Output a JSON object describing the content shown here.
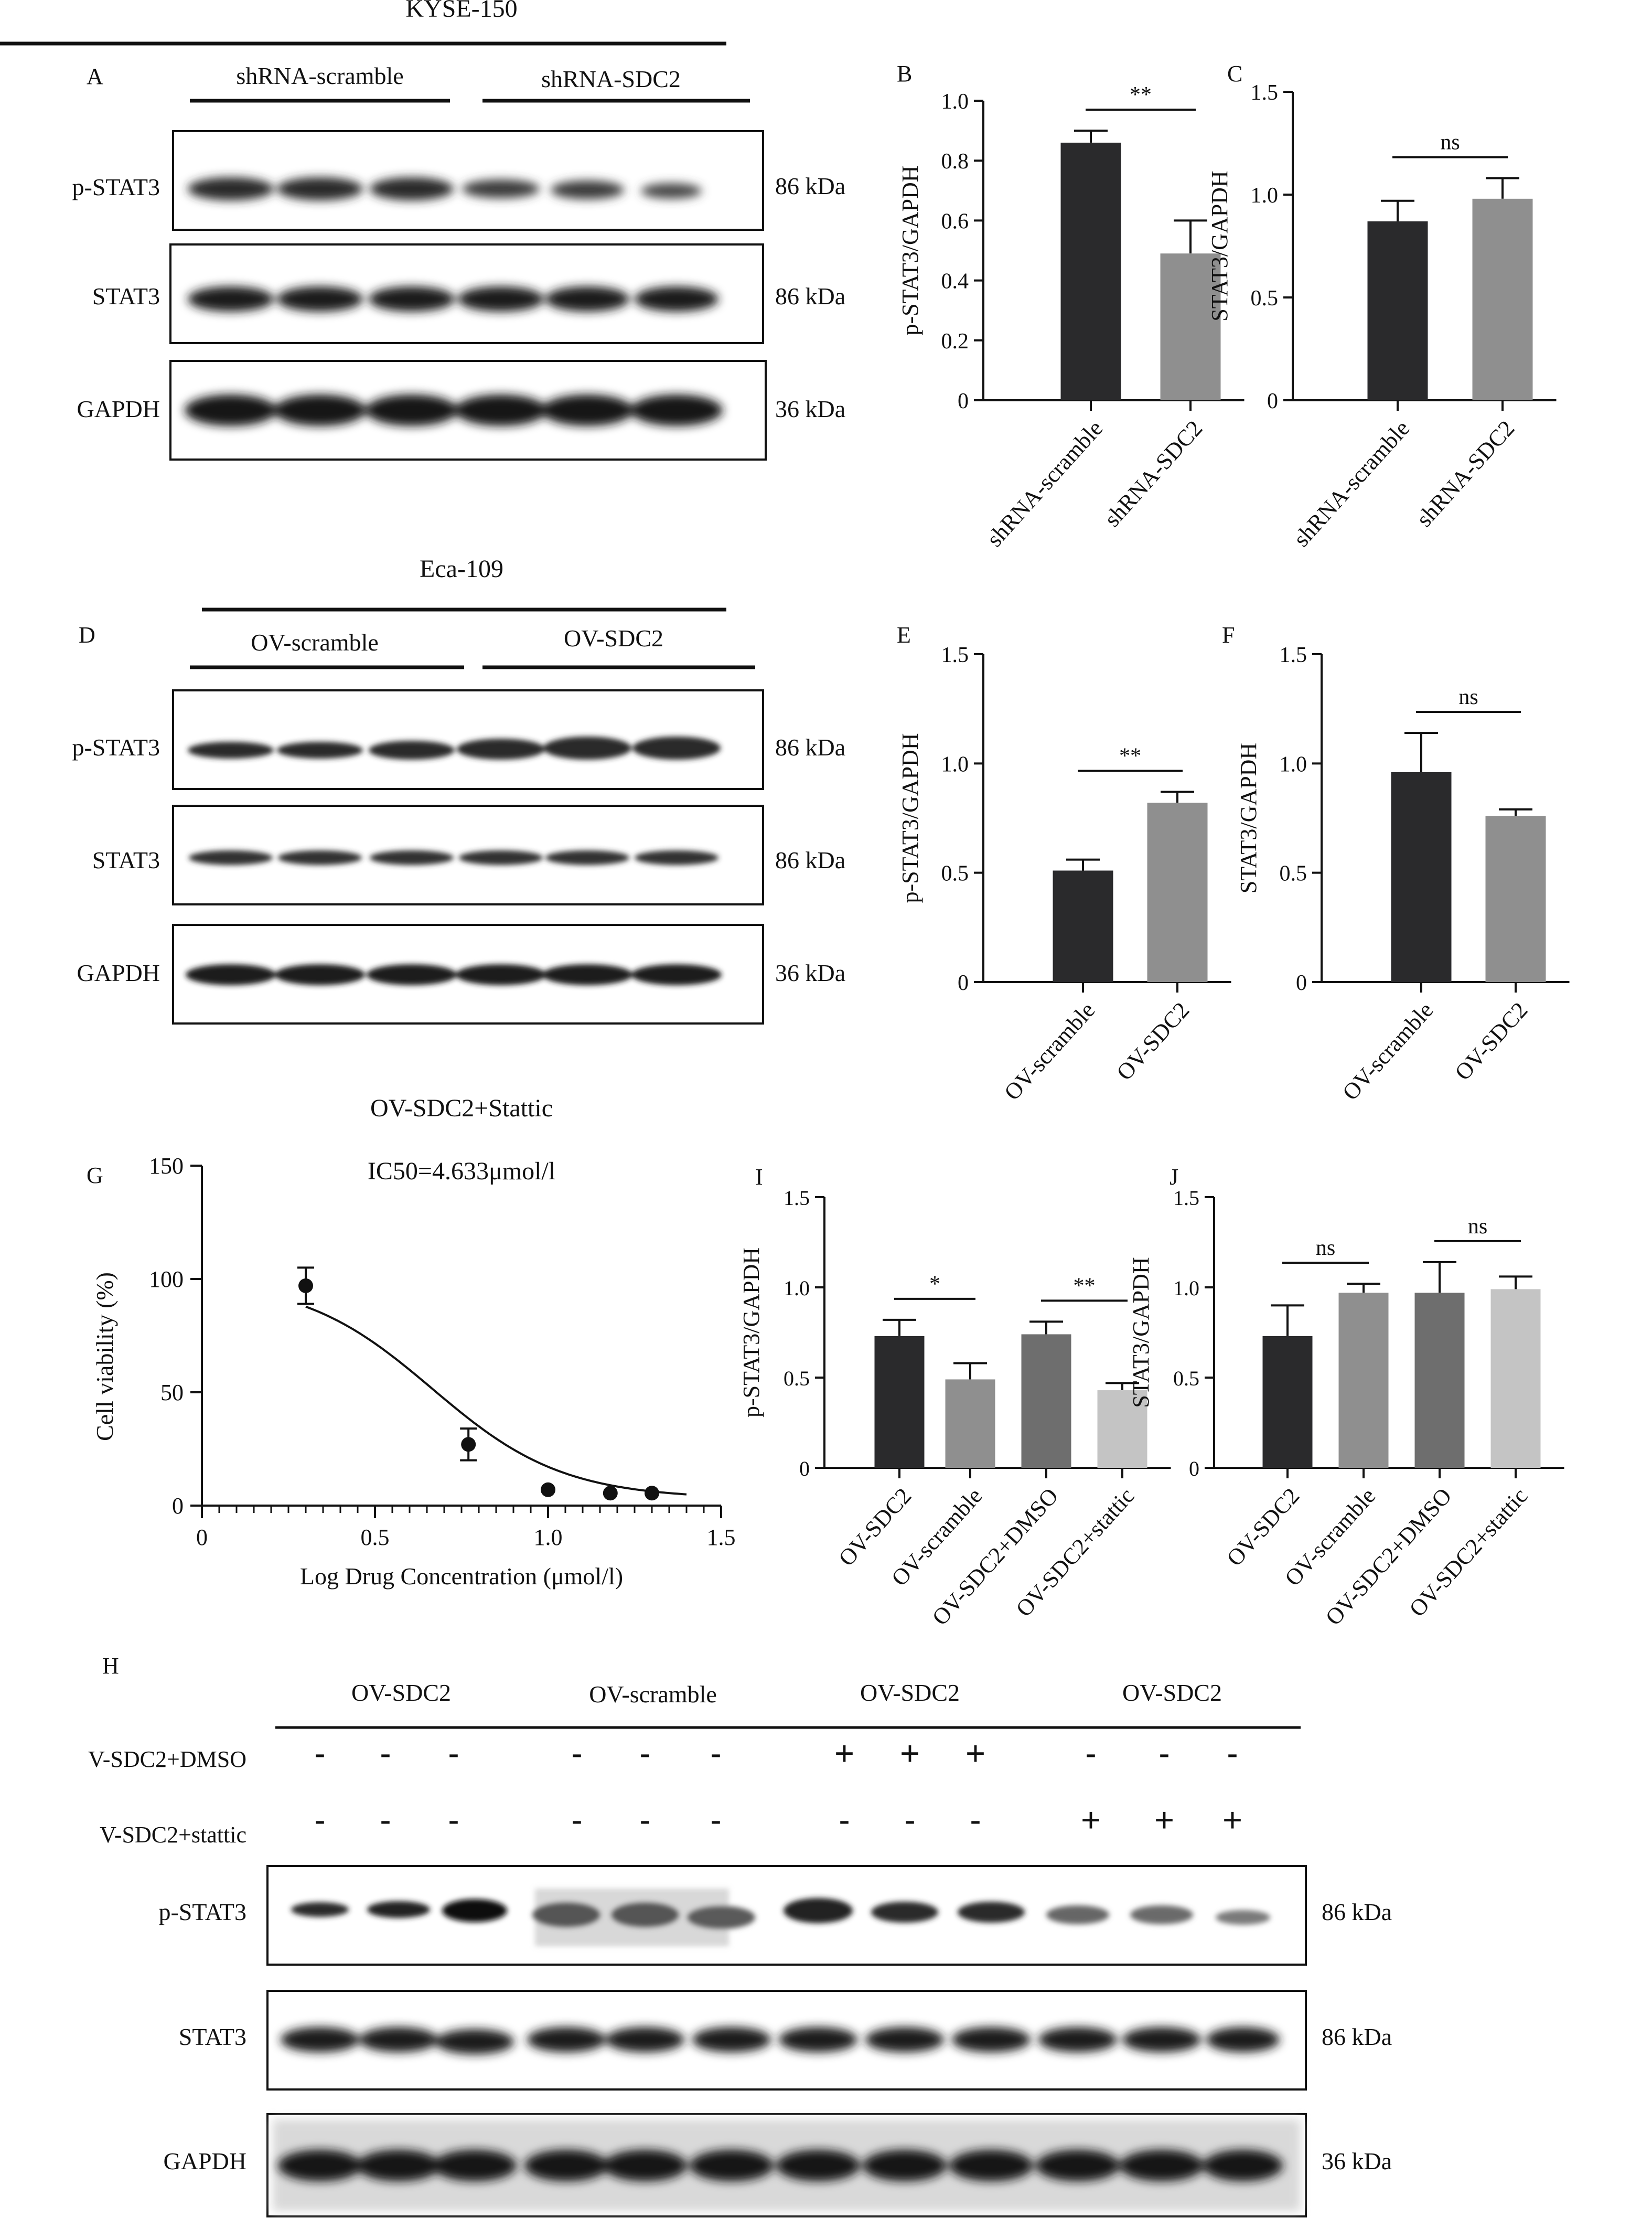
{
  "colors": {
    "black": "#2a2a2c",
    "gray": "#8f8f8f",
    "darkgray": "#6e6e6e",
    "lightgray": "#c4c4c4"
  },
  "panels": {
    "A": {
      "letter": "A",
      "cell_line": "KYSE-150",
      "groups": [
        "shRNA-scramble",
        "shRNA-SDC2"
      ],
      "blots": [
        {
          "label": "p-STAT3",
          "kda": "86 kDa"
        },
        {
          "label": "STAT3",
          "kda": "86 kDa"
        },
        {
          "label": "GAPDH",
          "kda": "36 kDa"
        }
      ]
    },
    "D": {
      "letter": "D",
      "cell_line": "Eca-109",
      "groups": [
        "OV-scramble",
        "OV-SDC2"
      ],
      "blots": [
        {
          "label": "p-STAT3",
          "kda": "86 kDa"
        },
        {
          "label": "STAT3",
          "kda": "86 kDa"
        },
        {
          "label": "GAPDH",
          "kda": "36 kDa"
        }
      ]
    },
    "H": {
      "letter": "H",
      "groups": [
        "OV-SDC2",
        "OV-scramble",
        "OV-SDC2",
        "OV-SDC2"
      ],
      "treat_rows": [
        {
          "label": "V-SDC2+DMSO",
          "signs": [
            "-",
            "-",
            "-",
            "-",
            "-",
            "-",
            "+",
            "+",
            "+",
            "-",
            "-",
            "-"
          ]
        },
        {
          "label": "V-SDC2+stattic",
          "signs": [
            "-",
            "-",
            "-",
            "-",
            "-",
            "-",
            "-",
            "-",
            "-",
            "+",
            "+",
            "+"
          ]
        }
      ],
      "blots": [
        {
          "label": "p-STAT3",
          "kda": "86 kDa"
        },
        {
          "label": "STAT3",
          "kda": "86 kDa"
        },
        {
          "label": "GAPDH",
          "kda": "36 kDa"
        }
      ]
    }
  },
  "chart_data": [
    {
      "panel": "B",
      "letter": "B",
      "type": "bar",
      "ylabel": "p-STAT3/GAPDH",
      "ylim": [
        0,
        1.0
      ],
      "yticks": [
        "0",
        "0.2",
        "0.4",
        "0.6",
        "0.8",
        "1.0"
      ],
      "categories": [
        "shRNA-scramble",
        "shRNA-SDC2"
      ],
      "values": [
        0.86,
        0.49
      ],
      "errors": [
        0.04,
        0.11
      ],
      "significance": [
        {
          "from": 0,
          "to": 1,
          "label": "**"
        }
      ]
    },
    {
      "panel": "C",
      "letter": "C",
      "type": "bar",
      "ylabel": "STAT3/GAPDH",
      "ylim": [
        0,
        1.5
      ],
      "yticks": [
        "0",
        "0.5",
        "1.0",
        "1.5"
      ],
      "categories": [
        "shRNA-scramble",
        "shRNA-SDC2"
      ],
      "values": [
        0.87,
        0.98
      ],
      "errors": [
        0.1,
        0.1
      ],
      "significance": [
        {
          "from": 0,
          "to": 1,
          "label": "ns"
        }
      ]
    },
    {
      "panel": "E",
      "letter": "E",
      "type": "bar",
      "ylabel": "p-STAT3/GAPDH",
      "ylim": [
        0,
        1.5
      ],
      "yticks": [
        "0",
        "0.5",
        "1.0",
        "1.5"
      ],
      "categories": [
        "OV-scramble",
        "OV-SDC2"
      ],
      "values": [
        0.51,
        0.82
      ],
      "errors": [
        0.05,
        0.05
      ],
      "significance": [
        {
          "from": 0,
          "to": 1,
          "label": "**"
        }
      ]
    },
    {
      "panel": "F",
      "letter": "F",
      "type": "bar",
      "ylabel": "STAT3/GAPDH",
      "ylim": [
        0,
        1.5
      ],
      "yticks": [
        "0",
        "0.5",
        "1.0",
        "1.5"
      ],
      "categories": [
        "OV-scramble",
        "OV-SDC2"
      ],
      "values": [
        0.96,
        0.76
      ],
      "errors": [
        0.18,
        0.03
      ],
      "significance": [
        {
          "from": 0,
          "to": 1,
          "label": "ns"
        }
      ]
    },
    {
      "panel": "G",
      "letter": "G",
      "type": "scatter",
      "title": "OV-SDC2+Stattic",
      "annotation": "IC50=4.633μmol/l",
      "xlabel": "Log Drug Concentration (μmol/l)",
      "ylabel": "Cell viability (%)",
      "xlim": [
        0,
        1.5
      ],
      "ylim": [
        0,
        150
      ],
      "xticks": [
        "0",
        "0.5",
        "1.0",
        "1.5"
      ],
      "yticks": [
        "0",
        "50",
        "100",
        "150"
      ],
      "points": [
        {
          "x": 0.3,
          "y": 97,
          "err": 8
        },
        {
          "x": 0.77,
          "y": 27,
          "err": 7
        },
        {
          "x": 1.0,
          "y": 7
        },
        {
          "x": 1.18,
          "y": 5.5
        },
        {
          "x": 1.3,
          "y": 5.5
        }
      ],
      "fit": {
        "top": 100,
        "bottom": 3,
        "logIC50": 0.666,
        "hill": -2.3
      }
    },
    {
      "panel": "I",
      "letter": "I",
      "type": "bar",
      "ylabel": "p-STAT3/GAPDH",
      "ylim": [
        0,
        1.5
      ],
      "yticks": [
        "0",
        "0.5",
        "1.0",
        "1.5"
      ],
      "categories": [
        "OV-SDC2",
        "OV-scramble",
        "OV-SDC2+DMSO",
        "OV-SDC2+stattic"
      ],
      "values": [
        0.73,
        0.49,
        0.74,
        0.43
      ],
      "errors": [
        0.09,
        0.09,
        0.07,
        0.04
      ],
      "significance": [
        {
          "from": 0,
          "to": 1,
          "label": "*"
        },
        {
          "from": 2,
          "to": 3,
          "label": "**"
        }
      ]
    },
    {
      "panel": "J",
      "letter": "J",
      "type": "bar",
      "ylabel": "STAT3/GAPDH",
      "ylim": [
        0,
        1.5
      ],
      "yticks": [
        "0",
        "0.5",
        "1.0",
        "1.5"
      ],
      "categories": [
        "OV-SDC2",
        "OV-scramble",
        "OV-SDC2+DMSO",
        "OV-SDC2+stattic"
      ],
      "values": [
        0.73,
        0.97,
        0.97,
        0.99
      ],
      "errors": [
        0.17,
        0.05,
        0.17,
        0.07
      ],
      "significance": [
        {
          "from": 0,
          "to": 1,
          "label": "ns"
        },
        {
          "from": 2,
          "to": 3,
          "label": "ns"
        }
      ]
    }
  ]
}
